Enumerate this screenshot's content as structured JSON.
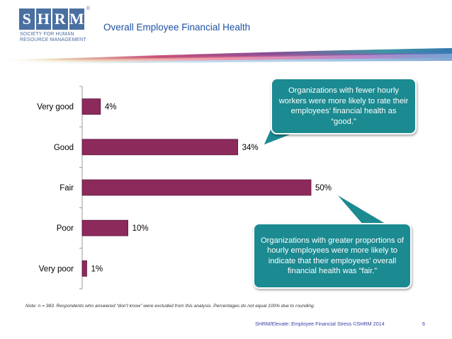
{
  "header": {
    "logo": {
      "letters": [
        "S",
        "H",
        "R",
        "M"
      ],
      "reg_mark": "®",
      "subtitle_line1": "SOCIETY FOR HUMAN",
      "subtitle_line2": "RESOURCE MANAGEMENT"
    },
    "title": "Overall Employee Financial Health"
  },
  "colors": {
    "bar": "#8c2a5c",
    "callout": "#1b8a91",
    "title": "#1f52a6",
    "footer": "#3a3fa5"
  },
  "chart_data": {
    "type": "bar",
    "orientation": "horizontal",
    "title": "Overall Employee Financial Health",
    "categories": [
      "Very good",
      "Good",
      "Fair",
      "Poor",
      "Very poor"
    ],
    "values": [
      4,
      34,
      50,
      10,
      1
    ],
    "value_labels": [
      "4%",
      "34%",
      "50%",
      "10%",
      "1%"
    ],
    "xlim": [
      0,
      50
    ],
    "xlabel": "",
    "ylabel": "",
    "grid": false,
    "annotations": [
      "Organizations with fewer hourly workers were more likely to rate their employees’ financial health as “good.”",
      "Organizations with greater proportions of hourly employees were more likely to indicate that their employees’ overall financial health was “fair.”"
    ]
  },
  "note": "Note: n = 383. Respondents who answered “don’t know” were excluded from this analysis. Percentages do not equal 100% due to rounding.",
  "footer": {
    "source": "SHRM/Elevate: Employee Financial Stress ©SHRM 2014",
    "page_number": "6"
  }
}
